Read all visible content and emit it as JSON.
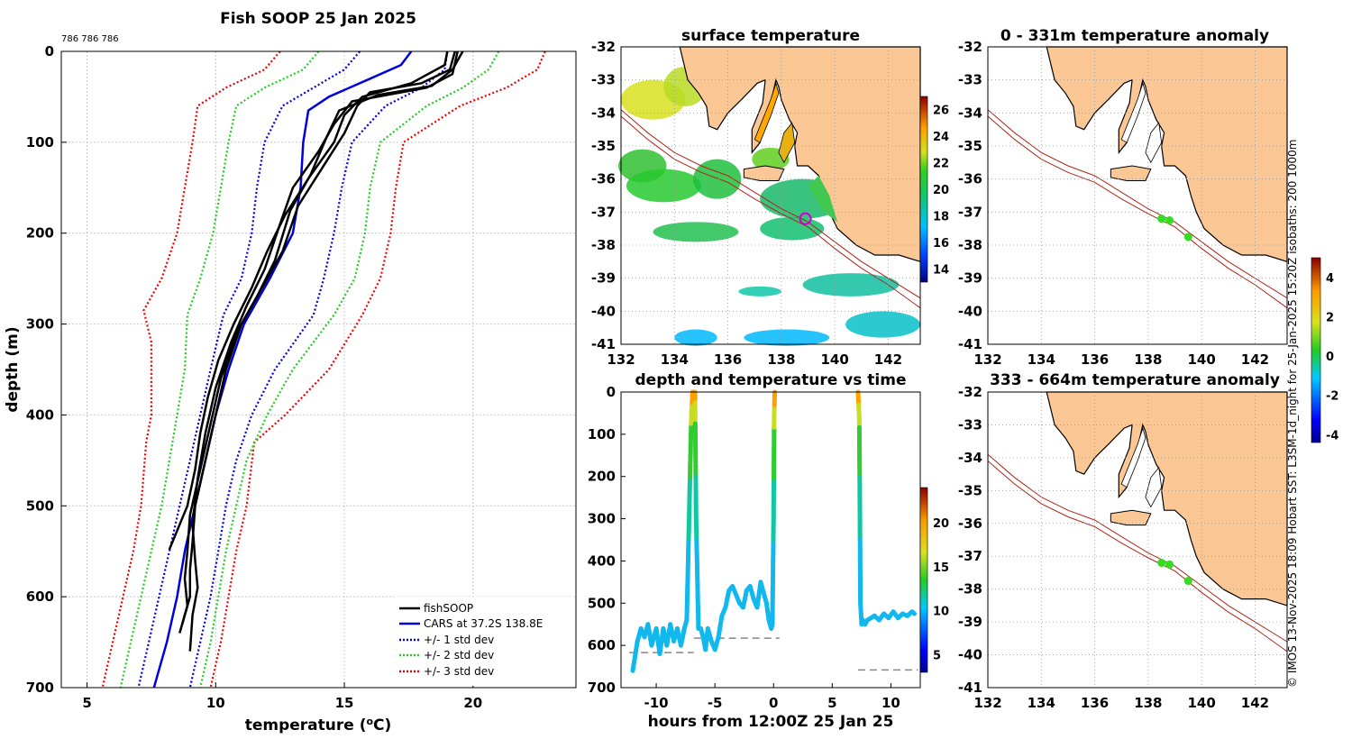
{
  "chart_data": [
    {
      "type": "line",
      "title": "Fish SOOP 25 Jan 2025",
      "subtitle": "786 786 786",
      "xlabel": "temperature (",
      "xlabel_unit_sup": "o",
      "xlabel_unit_end": "C)",
      "ylabel": "depth (m)",
      "xlim": [
        4,
        24
      ],
      "ylim": [
        0,
        700
      ],
      "y_reversed": true,
      "xticks": [
        5,
        10,
        15,
        20
      ],
      "yticks": [
        0,
        100,
        200,
        300,
        400,
        500,
        600,
        700
      ],
      "grid": true,
      "legend_position": "bottom-right",
      "series": [
        {
          "name": "fishSOOP",
          "color": "#000000",
          "style": "solid",
          "casts": [
            {
              "depth": [
                0,
                20,
                35,
                45,
                60,
                90,
                130,
                170,
                220,
                260,
                300,
                350,
                400,
                450,
                500,
                540,
                570,
                600,
                630
              ],
              "temp": [
                19.3,
                19.1,
                18.0,
                16.0,
                15.5,
                15.0,
                14.1,
                13.2,
                12.6,
                11.8,
                11.0,
                10.4,
                10.0,
                9.6,
                9.2,
                9.1,
                9.0,
                9.0,
                8.7
              ]
            },
            {
              "depth": [
                0,
                20,
                38,
                48,
                65,
                95,
                135,
                175,
                230,
                270,
                310,
                360,
                410,
                460,
                510,
                550,
                580,
                610,
                640
              ],
              "temp": [
                19.6,
                19.2,
                18.4,
                16.3,
                14.8,
                14.3,
                13.7,
                12.9,
                12.3,
                11.6,
                10.8,
                10.2,
                9.8,
                9.4,
                9.0,
                8.9,
                8.8,
                8.9,
                8.6
              ]
            },
            {
              "depth": [
                0,
                15,
                35,
                50,
                70,
                100,
                140,
                180,
                220,
                260,
                300,
                340,
                380,
                420,
                460,
                500,
                548
              ],
              "temp": [
                19.0,
                18.9,
                17.6,
                15.7,
                15.0,
                14.6,
                13.6,
                12.7,
                12.0,
                11.4,
                10.7,
                10.1,
                9.7,
                9.4,
                9.2,
                8.9,
                8.2
              ]
            },
            {
              "depth": [
                0,
                25,
                40,
                55,
                80,
                110,
                150,
                190,
                240,
                280,
                320,
                370,
                420,
                470,
                520,
                560,
                590,
                620,
                660
              ],
              "temp": [
                19.4,
                19.2,
                18.2,
                15.3,
                14.6,
                14.0,
                13.0,
                12.5,
                11.9,
                11.2,
                10.6,
                10.0,
                9.6,
                9.3,
                9.1,
                9.2,
                9.3,
                9.1,
                9.0
              ]
            }
          ]
        },
        {
          "name": "CARS at 37.2S 138.8E",
          "color": "#0000dd",
          "style": "solid",
          "depth": [
            0,
            15,
            30,
            50,
            65,
            100,
            150,
            200,
            250,
            300,
            350,
            400,
            450,
            500,
            550,
            600,
            650,
            700
          ],
          "temp": [
            17.6,
            17.2,
            16.0,
            14.4,
            13.6,
            13.4,
            13.3,
            13.0,
            12.1,
            11.1,
            10.5,
            10.0,
            9.6,
            9.2,
            8.8,
            8.5,
            8.1,
            7.6
          ]
        },
        {
          "name": "+/- 1 std dev",
          "color": "#0000dd",
          "style": "dotted",
          "lower": {
            "depth": [
              0,
              20,
              40,
              60,
              100,
              150,
              200,
              250,
              290,
              350,
              400,
              450,
              500,
              550,
              600,
              650,
              700
            ],
            "temp": [
              15.6,
              15.0,
              13.8,
              12.6,
              11.9,
              11.6,
              11.4,
              11.0,
              10.3,
              9.8,
              9.4,
              9.0,
              8.6,
              8.2,
              7.8,
              7.4,
              7.0
            ]
          },
          "upper": {
            "depth": [
              0,
              20,
              40,
              60,
              100,
              150,
              200,
              250,
              290,
              350,
              400,
              450,
              500,
              550,
              600,
              650,
              700
            ],
            "temp": [
              19.0,
              18.9,
              18.0,
              16.6,
              15.3,
              14.9,
              14.6,
              14.2,
              13.8,
              12.3,
              11.4,
              10.8,
              10.4,
              10.1,
              9.8,
              9.4,
              9.0
            ]
          }
        },
        {
          "name": "+/- 2 std dev",
          "color": "#22cc22",
          "style": "dotted",
          "lower": {
            "depth": [
              0,
              20,
              40,
              60,
              100,
              150,
              200,
              250,
              290,
              350,
              400,
              450,
              500,
              550,
              600,
              650,
              700
            ],
            "temp": [
              14.0,
              13.4,
              11.9,
              10.8,
              10.5,
              10.2,
              9.9,
              9.4,
              8.9,
              8.8,
              8.5,
              8.2,
              7.9,
              7.5,
              7.1,
              6.7,
              6.3
            ]
          },
          "upper": {
            "depth": [
              0,
              20,
              40,
              60,
              100,
              150,
              200,
              250,
              290,
              350,
              400,
              450,
              500,
              550,
              600,
              650,
              700
            ],
            "temp": [
              21.0,
              20.6,
              19.6,
              18.2,
              16.4,
              16.0,
              15.8,
              15.4,
              14.6,
              13.0,
              12.0,
              11.2,
              10.8,
              10.4,
              10.1,
              9.8,
              9.4
            ]
          }
        },
        {
          "name": "+/- 3 std dev",
          "color": "#ee0000",
          "style": "dotted",
          "lower": {
            "depth": [
              0,
              20,
              40,
              60,
              100,
              150,
              200,
              250,
              285,
              320,
              400,
              430,
              500,
              550,
              600,
              650,
              700
            ],
            "temp": [
              12.5,
              11.9,
              10.4,
              9.3,
              9.1,
              8.8,
              8.5,
              7.9,
              7.2,
              7.5,
              7.5,
              7.3,
              7.1,
              6.8,
              6.4,
              6.0,
              5.6
            ]
          },
          "upper": {
            "depth": [
              0,
              20,
              40,
              60,
              100,
              150,
              200,
              250,
              290,
              350,
              400,
              430,
              500,
              550,
              600,
              650,
              700
            ],
            "temp": [
              22.8,
              22.5,
              21.3,
              19.5,
              17.3,
              17.0,
              16.8,
              16.4,
              15.7,
              14.4,
              12.7,
              11.5,
              11.2,
              10.8,
              10.5,
              10.2,
              9.8
            ]
          }
        }
      ]
    },
    {
      "type": "heatmap",
      "title": "surface temperature",
      "xlim": [
        132,
        143.2
      ],
      "ylim": [
        -41,
        -32
      ],
      "xticks": [
        132,
        134,
        136,
        138,
        140,
        142
      ],
      "yticks": [
        -32,
        -33,
        -34,
        -35,
        -36,
        -37,
        -38,
        -39,
        -40,
        -41
      ],
      "colorbar": {
        "min": 13,
        "max": 27,
        "ticks": [
          14,
          16,
          18,
          20,
          22,
          24,
          26
        ]
      },
      "marker": {
        "lon": 138.9,
        "lat": -37.2
      }
    },
    {
      "type": "scatter",
      "title": "depth and temperature vs time",
      "xlabel": "hours from 12:00Z 25 Jan 25",
      "xlim": [
        -13,
        12.5
      ],
      "ylim": [
        0,
        700
      ],
      "y_reversed": true,
      "xticks": [
        -10,
        -5,
        0,
        5,
        10
      ],
      "yticks": [
        0,
        100,
        200,
        300,
        400,
        500,
        600,
        700
      ],
      "colorbar": {
        "min": 3,
        "max": 24,
        "ticks": [
          5,
          10,
          15,
          20
        ]
      },
      "track": [
        {
          "t": [
            -12,
            -11.6,
            -11.3,
            -11.0,
            -10.7,
            -10.4,
            -10.0,
            -9.7,
            -9.4,
            -9.1,
            -8.8,
            -8.5,
            -8.2,
            -7.9,
            -7.6,
            -7.4,
            -7.2,
            -7.0,
            -6.9,
            -6.8,
            -6.7,
            -6.6,
            -6.4,
            -6.2,
            -6.0,
            -5.8,
            -5.6,
            -5.3,
            -5.0,
            -4.7,
            -4.4,
            -4.1,
            -3.8,
            -3.5,
            -3.2,
            -2.9,
            -2.6,
            -2.3,
            -2.0,
            -1.7,
            -1.4,
            -1.1,
            -0.8,
            -0.6,
            -0.4,
            -0.2,
            -0.1,
            0.0,
            0.05,
            0.1
          ],
          "d": [
            660,
            590,
            560,
            580,
            550,
            600,
            560,
            620,
            560,
            600,
            550,
            590,
            560,
            600,
            560,
            540,
            300,
            50,
            0,
            0,
            0,
            300,
            560,
            560,
            580,
            610,
            560,
            590,
            610,
            580,
            530,
            510,
            470,
            460,
            480,
            500,
            510,
            470,
            460,
            490,
            510,
            450,
            480,
            500,
            540,
            560,
            550,
            300,
            60,
            0
          ]
        },
        {
          "t": [
            7.2,
            7.3,
            7.35,
            7.4,
            7.5,
            7.6,
            7.8,
            8.0,
            8.3,
            8.6,
            9.0,
            9.4,
            9.8,
            10.2,
            10.6,
            11.0,
            11.4,
            11.8,
            12.0
          ],
          "d": [
            0,
            60,
            250,
            500,
            550,
            540,
            550,
            540,
            535,
            530,
            540,
            525,
            535,
            520,
            535,
            525,
            530,
            520,
            525
          ]
        }
      ],
      "seafloor": [
        {
          "t0": -12.3,
          "t1": -6.8,
          "d": 617
        },
        {
          "t0": -6.8,
          "t1": 0.5,
          "d": 583
        },
        {
          "t0": 7.2,
          "t1": 12.3,
          "d": 658
        }
      ]
    },
    {
      "type": "heatmap",
      "title": "0 - 331m temperature anomaly",
      "xlim": [
        132,
        143.2
      ],
      "ylim": [
        -41,
        -32
      ],
      "xticks": [
        132,
        134,
        136,
        138,
        140,
        142
      ],
      "yticks": [
        -32,
        -33,
        -34,
        -35,
        -36,
        -37,
        -38,
        -39,
        -40,
        -41
      ],
      "points": [
        {
          "lon": 138.5,
          "lat": -37.2,
          "anomaly": 0.3
        },
        {
          "lon": 138.8,
          "lat": -37.25,
          "anomaly": 0.4
        },
        {
          "lon": 139.5,
          "lat": -37.75,
          "anomaly": 0.5
        }
      ]
    },
    {
      "type": "heatmap",
      "title": "333 - 664m temperature anomaly",
      "xlim": [
        132,
        143.2
      ],
      "ylim": [
        -41,
        -32
      ],
      "xticks": [
        132,
        134,
        136,
        138,
        140,
        142
      ],
      "yticks": [
        -32,
        -33,
        -34,
        -35,
        -36,
        -37,
        -38,
        -39,
        -40,
        -41
      ],
      "colorbar": {
        "min": -4.4,
        "max": 5.0,
        "ticks": [
          -4,
          -2,
          0,
          2,
          4
        ]
      },
      "points": [
        {
          "lon": 138.5,
          "lat": -37.2,
          "anomaly": 0.3
        },
        {
          "lon": 138.8,
          "lat": -37.25,
          "anomaly": 0.3
        },
        {
          "lon": 139.5,
          "lat": -37.75,
          "anomaly": 0.4
        }
      ]
    }
  ],
  "credit": "© IMOS 13-Nov-2025 18:09 Hobart SST: L3SM-1d_night for 25-Jan-2025 15:20Z isobaths: 200  1000m",
  "colors": {
    "land": "#fbc895",
    "grid": "#c8c8c8",
    "isobath": "#b02418",
    "seafloor": "#888888"
  }
}
